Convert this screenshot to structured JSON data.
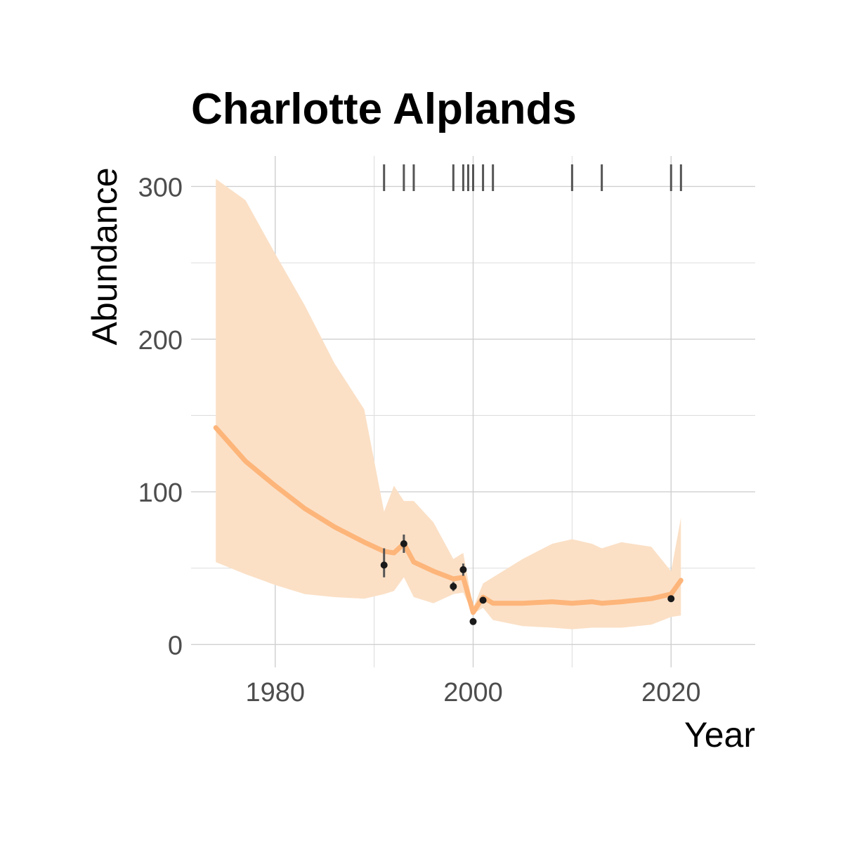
{
  "chart_data": {
    "type": "line",
    "title": "Charlotte Alplands",
    "xlabel": "Year",
    "ylabel": "Abundance",
    "xlim": [
      1971.5,
      2028.5
    ],
    "ylim": [
      -15,
      320
    ],
    "x_ticks": [
      1980,
      2000,
      2020
    ],
    "x_tick_labels": [
      "1980",
      "2000",
      "2020"
    ],
    "x_minor_ticks": [
      1990,
      2010
    ],
    "y_ticks": [
      0,
      100,
      200,
      300
    ],
    "y_tick_labels": [
      "0",
      "100",
      "200",
      "300"
    ],
    "y_minor_ticks": [
      50,
      150,
      250
    ],
    "grid": true,
    "colors": {
      "trend": "#fdb57a",
      "band": "#fbe0c6",
      "points": "#1a1a1a",
      "rug": "#555555"
    },
    "trend": {
      "x": [
        1974,
        1977,
        1980,
        1983,
        1986,
        1989,
        1991,
        1992,
        1993,
        1994,
        1996,
        1998,
        1999,
        2000,
        2001,
        2002,
        2005,
        2008,
        2010,
        2012,
        2013,
        2015,
        2018,
        2020,
        2021
      ],
      "y": [
        142,
        120,
        104,
        89,
        77,
        67,
        61,
        60,
        66,
        54,
        48,
        43,
        44,
        21,
        31,
        27,
        27,
        28,
        27,
        28,
        27,
        28,
        30,
        33,
        42
      ],
      "lower": [
        54,
        46,
        39,
        33,
        31,
        30,
        33,
        35,
        44,
        31,
        27,
        33,
        34,
        20,
        24,
        16,
        12,
        11,
        10,
        11,
        11,
        11,
        13,
        18,
        19
      ],
      "upper": [
        305,
        291,
        256,
        222,
        184,
        154,
        87,
        104,
        94,
        94,
        80,
        56,
        60,
        24,
        40,
        44,
        56,
        66,
        69,
        66,
        63,
        67,
        64,
        48,
        83
      ]
    },
    "observations": [
      {
        "x": 1991,
        "y": 52,
        "lo": 44,
        "hi": 63
      },
      {
        "x": 1993,
        "y": 66,
        "lo": 60,
        "hi": 72
      },
      {
        "x": 1998,
        "y": 38,
        "lo": 35,
        "hi": 41
      },
      {
        "x": 1999,
        "y": 49,
        "lo": 45,
        "hi": 53
      },
      {
        "x": 2000,
        "y": 15,
        "lo": 14,
        "hi": 17
      },
      {
        "x": 2001,
        "y": 29,
        "lo": 27,
        "hi": 31
      },
      {
        "x": 2020,
        "y": 30,
        "lo": 28,
        "hi": 32
      }
    ],
    "survey_years": [
      1991,
      1993,
      1994,
      1998,
      1999,
      1999.5,
      2000,
      2001,
      2002,
      2010,
      2013,
      2020,
      2021
    ]
  }
}
